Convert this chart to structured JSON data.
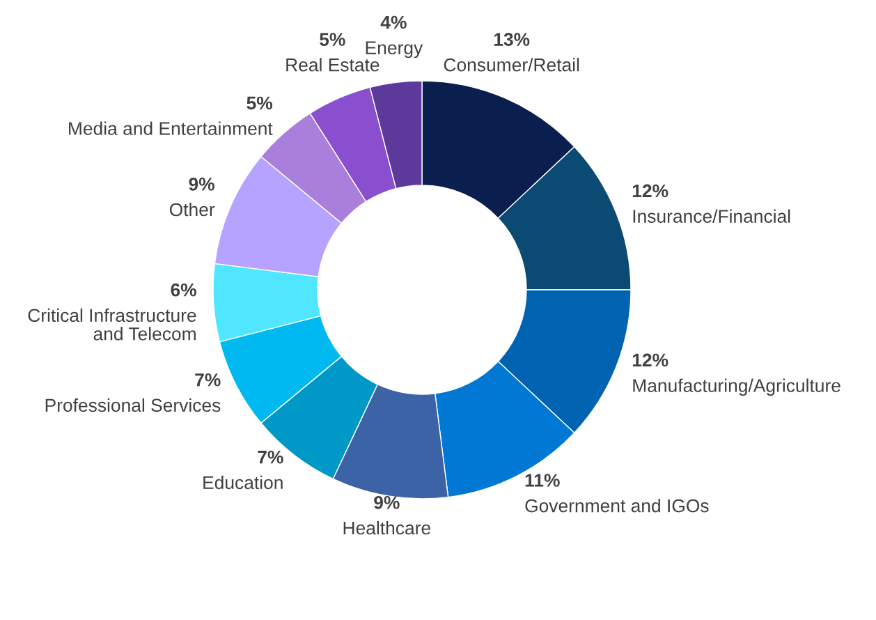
{
  "chart_data": {
    "type": "donut",
    "categories": [
      "Consumer/Retail",
      "Insurance/Financial",
      "Manufacturing/Agriculture",
      "Government and IGOs",
      "Healthcare",
      "Education",
      "Professional Services",
      "Critical Infrastructure\nand Telecom",
      "Other",
      "Media and Entertainment",
      "Real Estate",
      "Energy"
    ],
    "values": [
      13,
      12,
      12,
      11,
      9,
      7,
      7,
      6,
      9,
      5,
      5,
      4
    ],
    "value_labels": [
      "13%",
      "12%",
      "12%",
      "11%",
      "9%",
      "7%",
      "7%",
      "6%",
      "9%",
      "5%",
      "5%",
      "4%"
    ],
    "colors": [
      "#0b1f4e",
      "#0b4a72",
      "#0063b1",
      "#0078d4",
      "#3b63a6",
      "#0098c6",
      "#00b9f0",
      "#50e6ff",
      "#b6a2ff",
      "#a97fdc",
      "#8a4fcf",
      "#5e399c"
    ]
  }
}
